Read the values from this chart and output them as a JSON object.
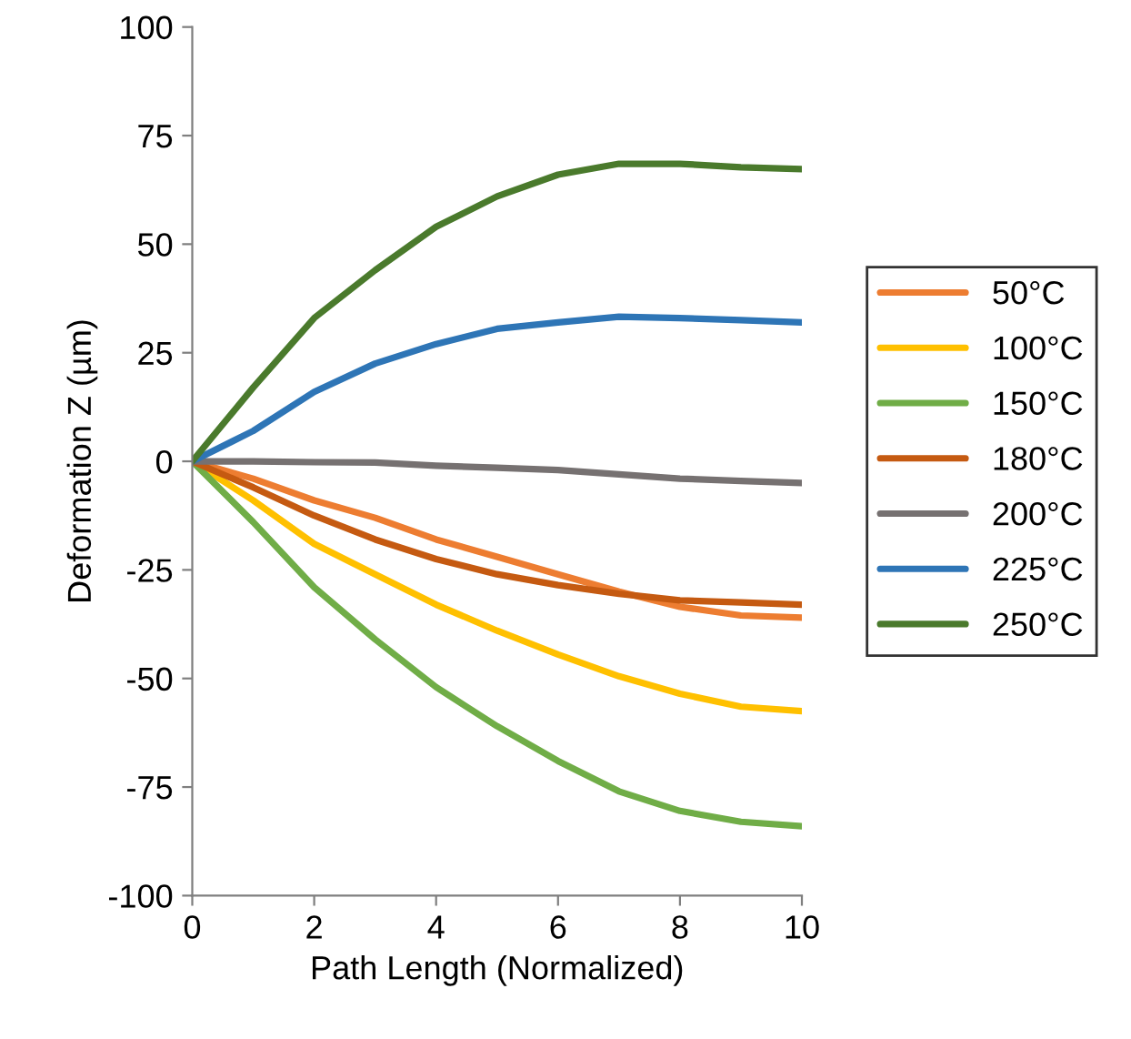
{
  "chart_data": {
    "type": "line",
    "xlabel": "Path Length (Normalized)",
    "ylabel": "Deformation Z (µm)",
    "x": [
      0,
      1,
      2,
      3,
      4,
      5,
      6,
      7,
      8,
      9,
      10
    ],
    "xlim": [
      0,
      10
    ],
    "xticks": [
      0,
      2,
      4,
      6,
      8,
      10
    ],
    "ylim": [
      -100,
      100
    ],
    "yticks": [
      -100,
      -75,
      -50,
      -25,
      0,
      25,
      50,
      75,
      100
    ],
    "grid": false,
    "legend": "right",
    "marker": "none",
    "line_style": "solid",
    "series": [
      {
        "name": "50°C",
        "color": "#ed7d31",
        "values": [
          0,
          -4,
          -9,
          -13,
          -18,
          -22,
          -26,
          -30,
          -33.5,
          -35.5,
          -36
        ]
      },
      {
        "name": "100°C",
        "color": "#ffc000",
        "values": [
          0,
          -9,
          -19,
          -26,
          -33,
          -39,
          -44.5,
          -49.5,
          -53.5,
          -56.5,
          -57.5
        ]
      },
      {
        "name": "150°C",
        "color": "#70ad47",
        "values": [
          0,
          -14,
          -29,
          -41,
          -52,
          -61,
          -69,
          -76,
          -80.5,
          -83,
          -84
        ]
      },
      {
        "name": "180°C",
        "color": "#c55a11",
        "values": [
          0,
          -6,
          -12.5,
          -18,
          -22.5,
          -26,
          -28.5,
          -30.5,
          -32,
          -32.5,
          -33
        ]
      },
      {
        "name": "200°C",
        "color": "#767171",
        "values": [
          0,
          0,
          -0.2,
          -0.3,
          -1,
          -1.5,
          -2,
          -3,
          -4,
          -4.5,
          -5
        ]
      },
      {
        "name": "225°C",
        "color": "#2e75b6",
        "values": [
          0,
          7,
          16,
          22.5,
          27,
          30.5,
          32,
          33.3,
          33,
          32.5,
          32
        ]
      },
      {
        "name": "250°C",
        "color": "#4a7a2c",
        "values": [
          0,
          17,
          33,
          44,
          54,
          61,
          66,
          68.5,
          68.5,
          67.7,
          67.3
        ]
      }
    ]
  }
}
